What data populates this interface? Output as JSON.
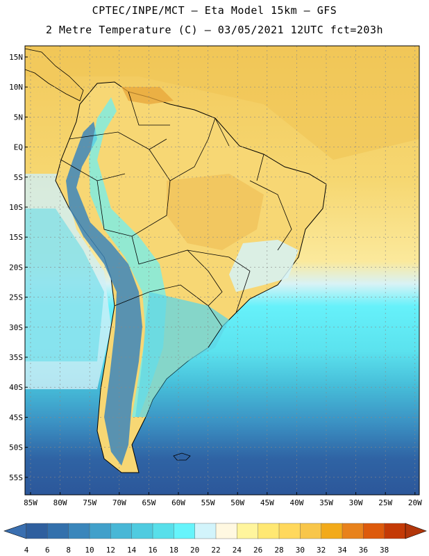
{
  "title": {
    "line1": "CPTEC/INPE/MCT –  Eta Model 15km – GFS",
    "line2": "2 Metre Temperature (C) – 03/05/2021 12UTC fct=203h"
  },
  "map": {
    "lat_labels": [
      "15N",
      "10N",
      "5N",
      "EQ",
      "5S",
      "10S",
      "15S",
      "20S",
      "25S",
      "30S",
      "35S",
      "40S",
      "45S",
      "50S",
      "55S"
    ],
    "lon_labels": [
      "85W",
      "80W",
      "75W",
      "70W",
      "65W",
      "60W",
      "55W",
      "50W",
      "45W",
      "40W",
      "35W",
      "30W",
      "25W",
      "20W"
    ]
  },
  "colorbar": {
    "labels": [
      "4",
      "6",
      "8",
      "10",
      "12",
      "14",
      "16",
      "18",
      "20",
      "22",
      "24",
      "26",
      "28",
      "30",
      "32",
      "34",
      "36",
      "38"
    ],
    "colors": [
      "#2f5f9e",
      "#3370ac",
      "#3a86bb",
      "#41a0ca",
      "#48b7d6",
      "#4fcbe0",
      "#58dfea",
      "#66f4fb",
      "#d2f4fb",
      "#fff8e1",
      "#fff59d",
      "#ffe873",
      "#ffd85c",
      "#f8c64a",
      "#f2aa1a",
      "#e8821c",
      "#dd5a0c",
      "#c43a06"
    ],
    "left_arrow_color": "#3a6fb0",
    "right_arrow_color": "#b2360a"
  }
}
